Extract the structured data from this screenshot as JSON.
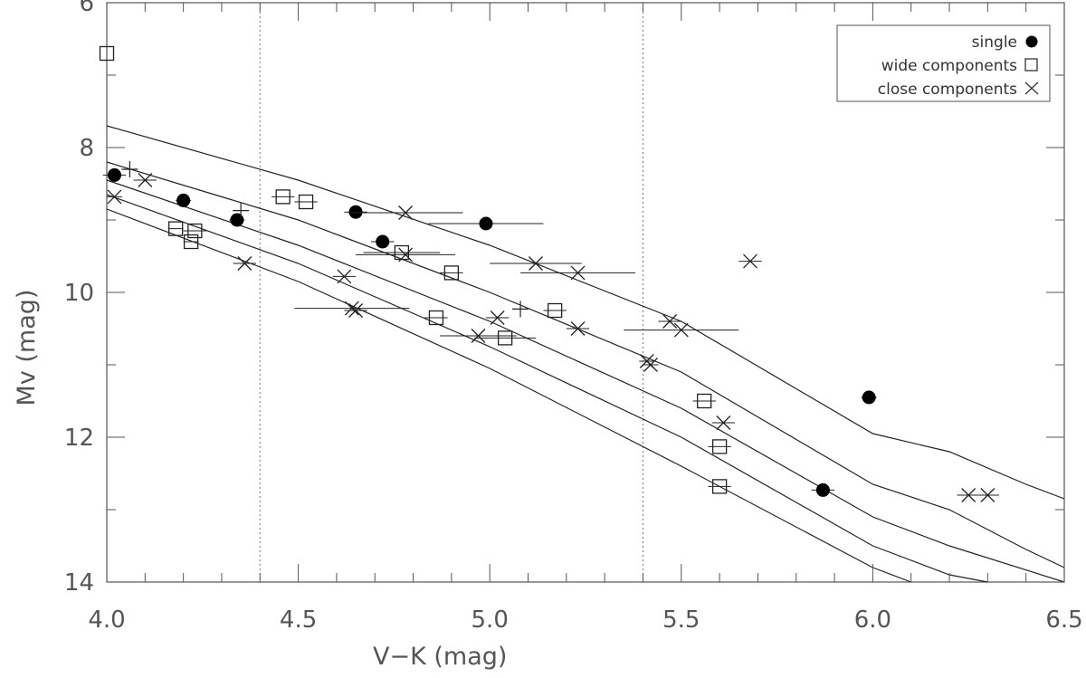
{
  "chart_data": {
    "type": "scatter",
    "xlabel": "V−K (mag)",
    "ylabel": "Mv (mag)",
    "xlim": [
      4.0,
      6.5
    ],
    "ylim": [
      14,
      6
    ],
    "y_inverted": true,
    "x_ticks": [
      "4.0",
      "4.5",
      "5.0",
      "5.5",
      "6.0",
      "6.5"
    ],
    "x_tick_values": [
      4.0,
      4.5,
      5.0,
      5.5,
      6.0,
      6.5
    ],
    "y_ticks": [
      "6",
      "8",
      "10",
      "12",
      "14"
    ],
    "y_tick_values": [
      6,
      8,
      10,
      12,
      14
    ],
    "vertical_dotted_lines": [
      4.4,
      5.4
    ],
    "legend": {
      "placement": "top-right",
      "entries": [
        {
          "label": "single",
          "marker": "filled-circle"
        },
        {
          "label": "wide components",
          "marker": "open-square"
        },
        {
          "label": "close components",
          "marker": "cross-x"
        }
      ]
    },
    "curves": [
      [
        [
          4.0,
          7.7
        ],
        [
          4.5,
          8.45
        ],
        [
          5.0,
          9.35
        ],
        [
          5.5,
          10.4
        ],
        [
          6.0,
          11.95
        ],
        [
          6.2,
          12.2
        ],
        [
          6.4,
          12.65
        ],
        [
          6.5,
          12.85
        ]
      ],
      [
        [
          4.0,
          8.2
        ],
        [
          4.5,
          9.0
        ],
        [
          5.0,
          10.0
        ],
        [
          5.5,
          11.1
        ],
        [
          6.0,
          12.65
        ],
        [
          6.2,
          13.0
        ],
        [
          6.4,
          13.55
        ],
        [
          6.5,
          13.8
        ]
      ],
      [
        [
          4.0,
          8.45
        ],
        [
          4.5,
          9.35
        ],
        [
          5.0,
          10.4
        ],
        [
          5.5,
          11.6
        ],
        [
          6.0,
          13.1
        ],
        [
          6.2,
          13.5
        ],
        [
          6.5,
          14.0
        ]
      ],
      [
        [
          4.0,
          8.65
        ],
        [
          4.5,
          9.6
        ],
        [
          5.0,
          10.75
        ],
        [
          5.5,
          12.0
        ],
        [
          6.0,
          13.5
        ],
        [
          6.2,
          13.9
        ],
        [
          6.3,
          14.0
        ]
      ],
      [
        [
          4.0,
          8.85
        ],
        [
          4.5,
          9.85
        ],
        [
          5.0,
          11.05
        ],
        [
          5.5,
          12.4
        ],
        [
          6.0,
          13.8
        ],
        [
          6.1,
          14.0
        ]
      ]
    ],
    "single": [
      {
        "x": 4.02,
        "y": 8.38,
        "xerr": 0.03
      },
      {
        "x": 4.2,
        "y": 8.73,
        "xerr": 0.02
      },
      {
        "x": 4.34,
        "y": 9.0,
        "xerr": 0.02
      },
      {
        "x": 4.65,
        "y": 8.89,
        "xerr": 0.03
      },
      {
        "x": 4.72,
        "y": 9.3,
        "xerr": 0.03
      },
      {
        "x": 4.99,
        "y": 9.05,
        "xerr": 0.15
      },
      {
        "x": 5.99,
        "y": 11.45,
        "xerr": 0.02
      },
      {
        "x": 5.87,
        "y": 12.73,
        "xerr": 0.03
      }
    ],
    "wide_components": [
      {
        "x": 4.0,
        "y": 6.7,
        "xerr": 0.0
      },
      {
        "x": 4.18,
        "y": 9.12,
        "xerr": 0.02
      },
      {
        "x": 4.22,
        "y": 9.3,
        "xerr": 0.02
      },
      {
        "x": 4.23,
        "y": 9.15,
        "xerr": 0.03
      },
      {
        "x": 4.46,
        "y": 8.68,
        "xerr": 0.03
      },
      {
        "x": 4.52,
        "y": 8.75,
        "xerr": 0.03
      },
      {
        "x": 4.77,
        "y": 9.45,
        "xerr": 0.1
      },
      {
        "x": 4.9,
        "y": 9.73,
        "xerr": 0.03
      },
      {
        "x": 4.86,
        "y": 10.35,
        "xerr": 0.03
      },
      {
        "x": 5.04,
        "y": 10.63,
        "xerr": 0.08
      },
      {
        "x": 5.17,
        "y": 10.25,
        "xerr": 0.03
      },
      {
        "x": 5.56,
        "y": 11.5,
        "xerr": 0.03
      },
      {
        "x": 5.6,
        "y": 12.13,
        "xerr": 0.03
      },
      {
        "x": 5.6,
        "y": 12.68,
        "xerr": 0.03
      }
    ],
    "close_components": [
      {
        "x": 4.02,
        "y": 8.68,
        "xerr": 0.02
      },
      {
        "x": 4.1,
        "y": 8.45,
        "xerr": 0.03
      },
      {
        "x": 4.36,
        "y": 9.6,
        "xerr": 0.03
      },
      {
        "x": 4.62,
        "y": 9.78,
        "xerr": 0.03
      },
      {
        "x": 4.64,
        "y": 10.22,
        "xerr": 0.15
      },
      {
        "x": 4.65,
        "y": 10.25,
        "xerr": 0.03
      },
      {
        "x": 4.78,
        "y": 8.9,
        "xerr": 0.15
      },
      {
        "x": 4.78,
        "y": 9.48,
        "xerr": 0.13
      },
      {
        "x": 4.97,
        "y": 10.6,
        "xerr": 0.1
      },
      {
        "x": 5.02,
        "y": 10.35,
        "xerr": 0.03
      },
      {
        "x": 5.12,
        "y": 9.6,
        "xerr": 0.12
      },
      {
        "x": 5.23,
        "y": 9.73,
        "xerr": 0.15
      },
      {
        "x": 5.23,
        "y": 10.5,
        "xerr": 0.03
      },
      {
        "x": 5.41,
        "y": 10.95,
        "xerr": 0.02
      },
      {
        "x": 5.42,
        "y": 11.0,
        "xerr": 0.02
      },
      {
        "x": 5.47,
        "y": 10.4,
        "xerr": 0.03
      },
      {
        "x": 5.5,
        "y": 10.52,
        "xerr": 0.15
      },
      {
        "x": 5.61,
        "y": 11.8,
        "xerr": 0.03
      },
      {
        "x": 5.68,
        "y": 9.57,
        "xerr": 0.03
      },
      {
        "x": 6.25,
        "y": 12.8,
        "xerr": 0.03
      },
      {
        "x": 6.3,
        "y": 12.8,
        "xerr": 0.03
      }
    ],
    "plus_markers": [
      {
        "x": 4.06,
        "y": 8.3
      },
      {
        "x": 4.35,
        "y": 8.87
      },
      {
        "x": 5.08,
        "y": 10.23
      }
    ]
  }
}
